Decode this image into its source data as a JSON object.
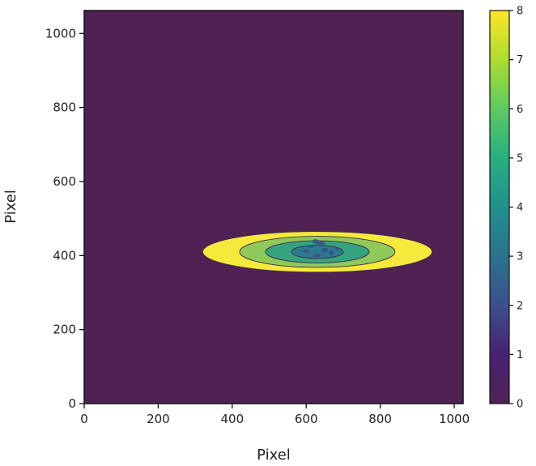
{
  "chart_data": {
    "type": "heatmap",
    "title": "",
    "xlabel": "Pixel",
    "ylabel": "Pixel",
    "xlim": [
      0,
      1024
    ],
    "ylim": [
      0,
      1062
    ],
    "xticks": [
      0,
      200,
      400,
      600,
      800,
      1000
    ],
    "yticks": [
      0,
      200,
      400,
      600,
      800,
      1000
    ],
    "colorbar": {
      "range": [
        0,
        8
      ],
      "ticks": [
        0,
        1,
        2,
        3,
        4,
        5,
        6,
        7,
        8
      ],
      "colormap": "viridis"
    },
    "background_value": 0,
    "feature": {
      "description_value_note": "elongated elliptical emission region centered near (630, 410)",
      "center": [
        630,
        410
      ],
      "extent_x": [
        310,
        955
      ],
      "extent_y": [
        355,
        475
      ],
      "contours": [
        {
          "level": 8,
          "semi_axes": [
            310,
            55
          ]
        },
        {
          "level": 6,
          "semi_axes": [
            210,
            42
          ]
        },
        {
          "level": 5,
          "semi_axes": [
            140,
            30
          ]
        },
        {
          "level": 4,
          "semi_axes": [
            70,
            18
          ]
        }
      ]
    },
    "colors": {
      "background": "#4f2253",
      "level_8": "#f7e93c",
      "level_6": "#8fc95a",
      "level_5": "#35a37f",
      "level_4": "#2c7b8c",
      "level_3": "#3b4f8c",
      "contour_line": "#3a2a4a"
    }
  }
}
